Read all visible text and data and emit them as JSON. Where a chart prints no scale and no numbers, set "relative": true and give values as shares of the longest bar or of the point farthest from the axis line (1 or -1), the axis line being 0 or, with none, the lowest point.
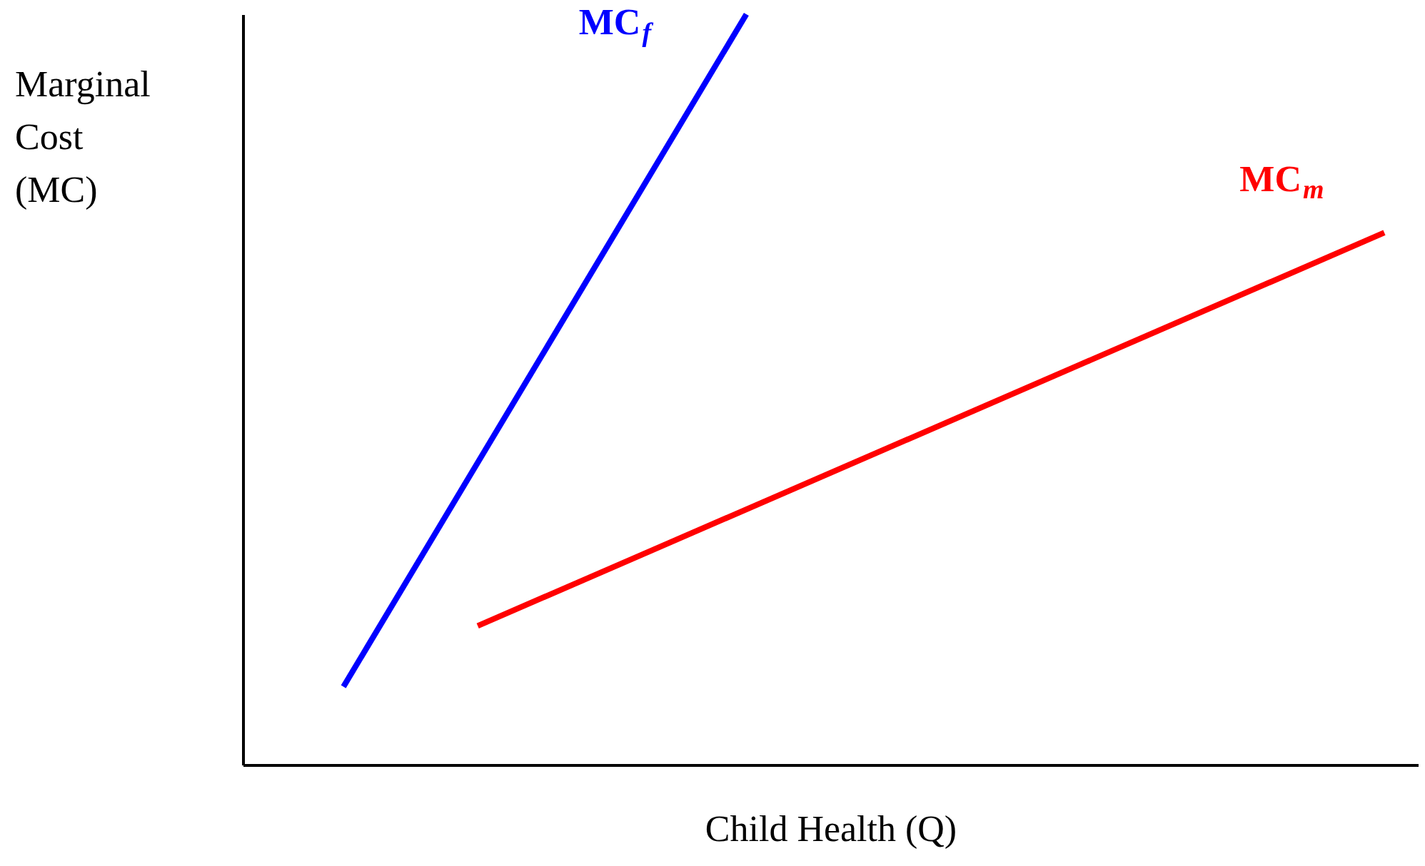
{
  "chart_data": {
    "type": "line",
    "relative": true,
    "xlabel": "Child Health (Q)",
    "ylabel": "Marginal Cost (MC)",
    "categories": [
      null,
      null,
      null,
      null,
      null,
      null,
      null,
      null,
      null,
      null,
      null,
      null,
      null,
      null,
      null,
      null,
      null,
      null,
      null,
      null,
      null,
      null,
      null,
      null,
      null,
      null,
      null,
      null,
      null,
      null,
      null,
      null,
      null,
      null,
      null,
      null
    ],
    "series": [
      {
        "name": "MC$_{f}$",
        "color": "#0000ff",
        "values": [
          null,
          null,
          null,
          0.104,
          null,
          null,
          null,
          null,
          null,
          null,
          null,
          null,
          null,
          null,
          null,
          1,
          null,
          null,
          null,
          null,
          null,
          null,
          null,
          null,
          null,
          null,
          null,
          null,
          null,
          null,
          null,
          null,
          null,
          null,
          null,
          null
        ]
      },
      {
        "name": "MC$_{m}$",
        "color": "#ff0000",
        "values": [
          null,
          null,
          null,
          null,
          null,
          null,
          null,
          0.185,
          null,
          null,
          null,
          null,
          null,
          null,
          null,
          null,
          null,
          null,
          null,
          null,
          null,
          null,
          null,
          null,
          null,
          null,
          null,
          null,
          null,
          null,
          null,
          null,
          null,
          null,
          0.709,
          null
        ]
      }
    ],
    "line_style": "solid"
  }
}
